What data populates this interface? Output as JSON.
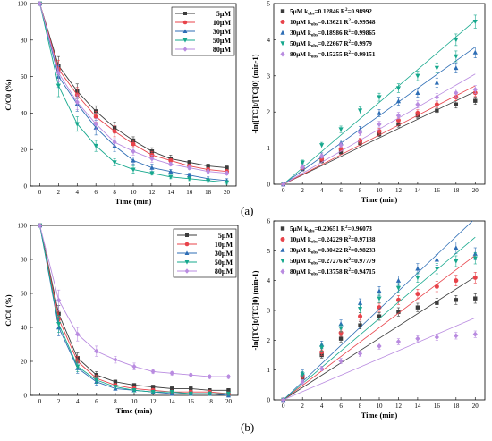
{
  "figure": {
    "label_a": "(a)",
    "label_b": "(b)"
  },
  "colors": {
    "5uM": "#3b3b3b",
    "10uM": "#e8434a",
    "30uM": "#2d6db5",
    "50uM": "#16a88d",
    "80uM": "#b98be0"
  },
  "chart_data": [
    {
      "id": "a-left",
      "type": "line",
      "xlabel": "Time (min)",
      "ylabel": "C/C0 (%)",
      "xlim": [
        -1,
        21
      ],
      "ylim": [
        0,
        100
      ],
      "xticks": [
        0,
        2,
        4,
        6,
        8,
        10,
        12,
        14,
        16,
        18,
        20
      ],
      "yticks": [
        0,
        20,
        40,
        60,
        80,
        100
      ],
      "legend_position": "top-right",
      "x": [
        0,
        2,
        4,
        6,
        8,
        10,
        12,
        14,
        16,
        18,
        20
      ],
      "series": [
        {
          "name": "5μM",
          "key": "5uM",
          "marker": "square",
          "values": [
            100,
            66,
            52,
            41,
            32,
            25,
            19,
            15,
            13,
            11,
            10
          ],
          "error": [
            0,
            5,
            4,
            3,
            3,
            2,
            2,
            2,
            1,
            1,
            1
          ]
        },
        {
          "name": "10μM",
          "key": "10uM",
          "marker": "circle",
          "values": [
            100,
            64,
            50,
            38,
            30,
            23,
            17,
            14,
            11,
            9,
            8
          ],
          "error": [
            0,
            5,
            4,
            3,
            3,
            2,
            2,
            1,
            1,
            1,
            1
          ]
        },
        {
          "name": "30μM",
          "key": "30uM",
          "marker": "triangle",
          "values": [
            100,
            60,
            45,
            32,
            22,
            14,
            10,
            8,
            6,
            4,
            3
          ],
          "error": [
            0,
            6,
            4,
            4,
            3,
            2,
            2,
            1,
            1,
            1,
            1
          ]
        },
        {
          "name": "50μM",
          "key": "50uM",
          "marker": "triangle-down",
          "values": [
            100,
            55,
            34,
            22,
            13,
            9,
            7,
            5,
            4,
            3,
            2
          ],
          "error": [
            0,
            6,
            4,
            3,
            2,
            2,
            1,
            1,
            1,
            1,
            1
          ]
        },
        {
          "name": "80μM",
          "key": "80uM",
          "marker": "diamond",
          "values": [
            100,
            62,
            46,
            34,
            24,
            19,
            15,
            12,
            10,
            8,
            7
          ],
          "error": [
            0,
            5,
            4,
            3,
            2,
            2,
            2,
            1,
            1,
            1,
            1
          ]
        }
      ]
    },
    {
      "id": "a-right",
      "type": "scatter",
      "xlabel": "Time (min)",
      "ylabel": "-ln([TC]t/[TC]0) (min-1)",
      "xlim": [
        -1,
        21
      ],
      "ylim": [
        0,
        5
      ],
      "xticks": [
        0,
        2,
        4,
        6,
        8,
        10,
        12,
        14,
        16,
        18,
        20
      ],
      "yticks": [
        0,
        1,
        2,
        3,
        4,
        5
      ],
      "legend_position": "top-left",
      "x": [
        0,
        2,
        4,
        6,
        8,
        10,
        12,
        14,
        16,
        18,
        20
      ],
      "series": [
        {
          "name": "5μM",
          "key": "5uM",
          "marker": "square",
          "kobs": "0.12846",
          "r2": "0.98992",
          "values": [
            0,
            0.42,
            0.65,
            0.89,
            1.14,
            1.39,
            1.66,
            1.9,
            2.04,
            2.21,
            2.31
          ],
          "error": [
            0,
            0.05,
            0.06,
            0.06,
            0.07,
            0.07,
            0.08,
            0.08,
            0.09,
            0.1,
            0.1
          ]
        },
        {
          "name": "10μM",
          "key": "10uM",
          "marker": "circle",
          "kobs": "0.13621",
          "r2": "0.99548",
          "values": [
            0,
            0.45,
            0.7,
            0.97,
            1.2,
            1.47,
            1.77,
            1.97,
            2.21,
            2.41,
            2.53
          ],
          "error": [
            0,
            0.05,
            0.06,
            0.06,
            0.07,
            0.08,
            0.08,
            0.09,
            0.09,
            0.1,
            0.1
          ]
        },
        {
          "name": "30μM",
          "key": "30uM",
          "marker": "triangle",
          "kobs": "0.18986",
          "r2": "0.99865",
          "values": [
            0,
            0.51,
            0.8,
            1.14,
            1.51,
            1.97,
            2.3,
            2.53,
            2.81,
            3.22,
            3.65
          ],
          "error": [
            0,
            0.06,
            0.07,
            0.08,
            0.09,
            0.1,
            0.11,
            0.12,
            0.13,
            0.14,
            0.15
          ]
        },
        {
          "name": "50μM",
          "key": "50uM",
          "marker": "triangle-down",
          "kobs": "0.22667",
          "r2": "0.9979",
          "values": [
            0,
            0.6,
            1.08,
            1.52,
            2.04,
            2.41,
            2.66,
            3.0,
            3.22,
            3.54,
            4.0,
            4.5
          ],
          "x_override": [
            0,
            2,
            4,
            6,
            8,
            10,
            12,
            14,
            16,
            18,
            18,
            20
          ],
          "error": [
            0,
            0.07,
            0.08,
            0.09,
            0.1,
            0.11,
            0.12,
            0.13,
            0.14,
            0.15,
            0.16,
            0.18
          ]
        },
        {
          "name": "80μM",
          "key": "80uM",
          "marker": "diamond",
          "kobs": "0.15255",
          "r2": "0.99151",
          "values": [
            0,
            0.48,
            0.78,
            1.08,
            1.43,
            1.66,
            1.9,
            2.21,
            2.41,
            2.53,
            2.62
          ],
          "error": [
            0,
            0.05,
            0.06,
            0.07,
            0.08,
            0.08,
            0.09,
            0.1,
            0.1,
            0.11,
            0.11
          ]
        }
      ]
    },
    {
      "id": "b-left",
      "type": "line",
      "xlabel": "Time (min)",
      "ylabel": "C/C0 (%)",
      "xlim": [
        -1,
        21
      ],
      "ylim": [
        0,
        100
      ],
      "xticks": [
        0,
        2,
        4,
        6,
        8,
        10,
        12,
        14,
        16,
        18,
        20
      ],
      "yticks": [
        0,
        20,
        40,
        60,
        80,
        100
      ],
      "legend_position": "top-right",
      "x": [
        0,
        2,
        4,
        6,
        8,
        10,
        12,
        14,
        16,
        18,
        20
      ],
      "series": [
        {
          "name": "5μM",
          "key": "5uM",
          "marker": "square",
          "values": [
            100,
            48,
            22,
            12,
            8,
            6,
            5,
            4,
            4,
            3,
            3
          ],
          "error": [
            0,
            5,
            3,
            2,
            1,
            1,
            1,
            1,
            1,
            1,
            1
          ]
        },
        {
          "name": "10μM",
          "key": "10uM",
          "marker": "circle",
          "values": [
            100,
            45,
            20,
            10,
            6,
            4,
            3,
            2,
            2,
            2,
            1
          ],
          "error": [
            0,
            5,
            3,
            2,
            1,
            1,
            1,
            1,
            1,
            1,
            1
          ]
        },
        {
          "name": "30μM",
          "key": "30uM",
          "marker": "triangle",
          "values": [
            100,
            40,
            16,
            8,
            4,
            3,
            2,
            1,
            1,
            1,
            0
          ],
          "error": [
            0,
            5,
            3,
            2,
            1,
            1,
            1,
            1,
            1,
            1,
            1
          ]
        },
        {
          "name": "50μM",
          "key": "50uM",
          "marker": "triangle-down",
          "values": [
            100,
            42,
            17,
            9,
            5,
            3,
            2,
            2,
            1,
            1,
            1
          ],
          "error": [
            0,
            5,
            3,
            2,
            1,
            1,
            1,
            1,
            1,
            1,
            1
          ]
        },
        {
          "name": "80μM",
          "key": "80uM",
          "marker": "diamond",
          "values": [
            100,
            56,
            36,
            26,
            21,
            17,
            14,
            13,
            12,
            11,
            11
          ],
          "error": [
            0,
            6,
            4,
            3,
            2,
            2,
            1,
            1,
            1,
            1,
            1
          ]
        }
      ]
    },
    {
      "id": "b-right",
      "type": "scatter",
      "xlabel": "Time (min)",
      "ylabel": "-ln([TC]t/[TC]0) (min-1)",
      "xlim": [
        -1,
        21
      ],
      "ylim": [
        0,
        6
      ],
      "xticks": [
        0,
        2,
        4,
        6,
        8,
        10,
        12,
        14,
        16,
        18,
        20
      ],
      "yticks": [
        0,
        1,
        2,
        3,
        4,
        5,
        6
      ],
      "legend_position": "top-left",
      "x": [
        0,
        2,
        4,
        6,
        8,
        10,
        12,
        14,
        16,
        18,
        20
      ],
      "series": [
        {
          "name": "5μM",
          "key": "5uM",
          "marker": "square",
          "kobs": "0.20651",
          "r2": "0.96073",
          "values": [
            0,
            0.75,
            1.5,
            2.05,
            2.5,
            2.8,
            2.95,
            3.1,
            3.25,
            3.35,
            3.4
          ],
          "error": [
            0,
            0.08,
            0.1,
            0.11,
            0.12,
            0.13,
            0.14,
            0.14,
            0.15,
            0.15,
            0.16
          ]
        },
        {
          "name": "10μM",
          "key": "10uM",
          "marker": "circle",
          "kobs": "0.24229",
          "r2": "0.97138",
          "values": [
            0,
            0.8,
            1.6,
            2.25,
            2.8,
            3.1,
            3.35,
            3.55,
            3.8,
            4.0,
            4.1
          ],
          "error": [
            0,
            0.09,
            0.11,
            0.12,
            0.13,
            0.14,
            0.15,
            0.16,
            0.17,
            0.18,
            0.18
          ]
        },
        {
          "name": "30μM",
          "key": "30uM",
          "marker": "triangle",
          "kobs": "0.30422",
          "r2": "0.98233",
          "values": [
            0,
            0.9,
            1.85,
            2.55,
            3.25,
            3.65,
            4.0,
            4.4,
            4.7,
            5.1,
            4.9
          ],
          "error": [
            0,
            0.1,
            0.12,
            0.13,
            0.14,
            0.15,
            0.16,
            0.17,
            0.18,
            0.19,
            0.2
          ]
        },
        {
          "name": "50μM",
          "key": "50uM",
          "marker": "triangle-down",
          "kobs": "0.27276",
          "r2": "0.97779",
          "values": [
            0,
            0.85,
            1.75,
            2.4,
            3.05,
            3.4,
            3.75,
            4.1,
            4.4,
            4.65,
            4.75
          ],
          "error": [
            0,
            0.09,
            0.11,
            0.12,
            0.13,
            0.14,
            0.15,
            0.16,
            0.17,
            0.18,
            0.19
          ]
        },
        {
          "name": "80μM",
          "key": "80uM",
          "marker": "diamond",
          "kobs": "0.13758",
          "r2": "0.94715",
          "values": [
            0,
            0.6,
            1.05,
            1.3,
            1.55,
            1.8,
            1.95,
            2.05,
            2.1,
            2.15,
            2.2
          ],
          "error": [
            0,
            0.07,
            0.08,
            0.09,
            0.09,
            0.1,
            0.1,
            0.1,
            0.11,
            0.11,
            0.11
          ]
        }
      ]
    }
  ]
}
